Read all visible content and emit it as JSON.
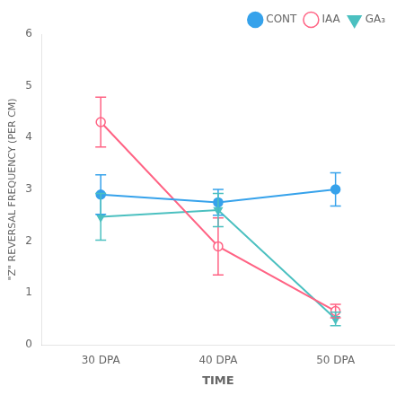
{
  "chart_data": {
    "type": "line",
    "xlabel": "TIME",
    "ylabel": "\"Z\" REVERSAL FREQUENCY (PER CM)",
    "categories": [
      "30 DPA",
      "40 DPA",
      "50 DPA"
    ],
    "series": [
      {
        "name": "CONT",
        "values": [
          2.9,
          2.75,
          3.0
        ],
        "errors": [
          0.38,
          0.25,
          0.32
        ],
        "marker": "circle"
      },
      {
        "name": "IAA",
        "values": [
          4.3,
          1.9,
          0.65
        ],
        "errors": [
          0.48,
          0.55,
          0.13
        ],
        "marker": "open_circle"
      },
      {
        "name": "GA₃",
        "values": [
          2.47,
          2.6,
          0.5
        ],
        "errors": [
          0.45,
          0.32,
          0.13
        ],
        "marker": "triangle_down"
      }
    ],
    "ylim": [
      0,
      6
    ],
    "yticks": [
      0,
      1,
      2,
      3,
      4,
      5,
      6
    ],
    "grid": false,
    "legend": "upper right"
  }
}
